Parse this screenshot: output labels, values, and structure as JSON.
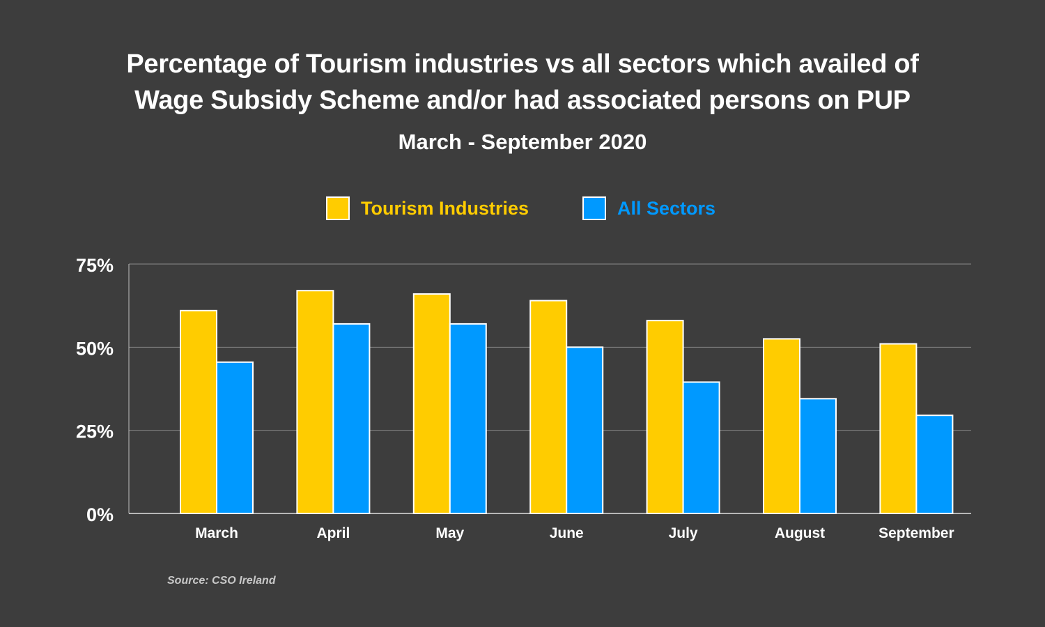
{
  "title_lines": [
    "Percentage of Tourism industries vs all sectors which availed of",
    "Wage Subsidy Scheme and/or had associated persons on PUP"
  ],
  "subtitle": "March - September 2020",
  "source": "Source: CSO Ireland",
  "colors": {
    "background": "#3d3d3d",
    "tourism": "#ffcc00",
    "all_sectors": "#0099ff",
    "gridline": "#8a8a8a",
    "text": "#ffffff"
  },
  "chart_data": {
    "type": "bar",
    "categories": [
      "March",
      "April",
      "May",
      "June",
      "July",
      "August",
      "September"
    ],
    "series": [
      {
        "name": "Tourism Industries",
        "color": "#ffcc00",
        "values": [
          61,
          67,
          66,
          64,
          58,
          52.5,
          51
        ]
      },
      {
        "name": "All Sectors",
        "color": "#0099ff",
        "values": [
          45.5,
          57,
          57,
          50,
          39.5,
          34.5,
          29.5
        ]
      }
    ],
    "yticks": [
      "0%",
      "25%",
      "50%",
      "75%"
    ],
    "ylim": [
      0,
      75
    ],
    "grid": true,
    "legend_position": "top"
  }
}
